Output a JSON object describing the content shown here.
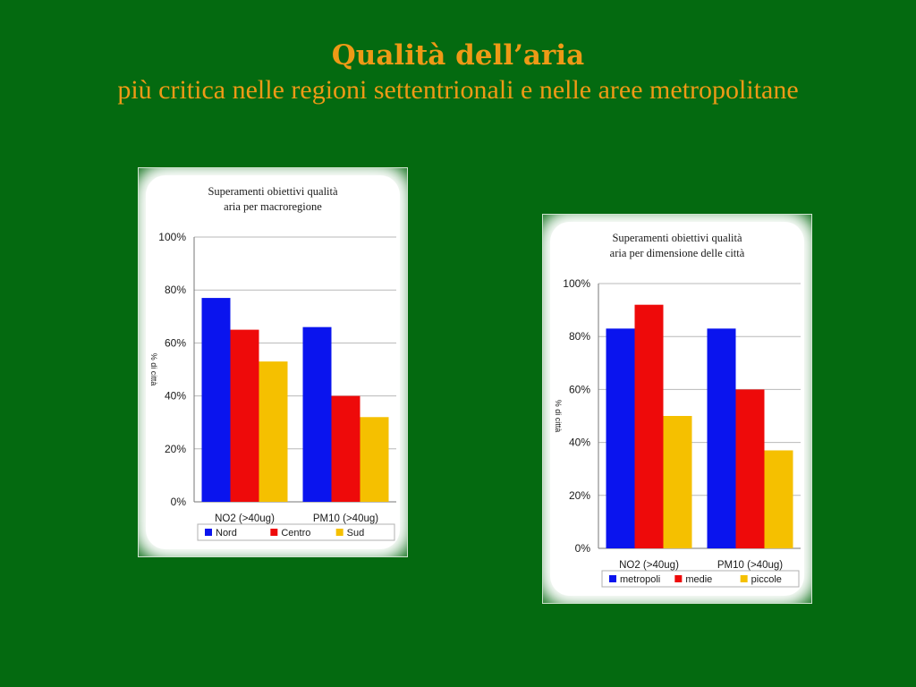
{
  "slide": {
    "title": "Qualità dell’aria",
    "subtitle": "più critica nelle regioni settentrionali e nelle aree metropolitane"
  },
  "colors": {
    "background": "#046a10",
    "title": "#ee9a16",
    "series": [
      "#0a14ee",
      "#ee0a0a",
      "#f5c000"
    ]
  },
  "chart_data": [
    {
      "type": "bar",
      "title_lines": [
        "Superamenti obiettivi qualità",
        "aria per macroregione"
      ],
      "ylabel": "% di città",
      "categories": [
        "NO2 (>40ug)",
        "PM10 (>40ug)"
      ],
      "series": [
        {
          "name": "Nord",
          "values": [
            77,
            66
          ]
        },
        {
          "name": "Centro",
          "values": [
            65,
            40
          ]
        },
        {
          "name": "Sud",
          "values": [
            53,
            32
          ]
        }
      ],
      "ylim": [
        0,
        100
      ],
      "yticks": [
        0,
        20,
        40,
        60,
        80,
        100
      ],
      "ytick_labels": [
        "0%",
        "20%",
        "40%",
        "60%",
        "80%",
        "100%"
      ],
      "grid": true,
      "legend": "bottom"
    },
    {
      "type": "bar",
      "title_lines": [
        "Superamenti obiettivi qualità",
        "aria per dimensione delle città"
      ],
      "ylabel": "% di città",
      "categories": [
        "NO2 (>40ug)",
        "PM10 (>40ug)"
      ],
      "series": [
        {
          "name": "metropoli",
          "values": [
            83,
            83
          ]
        },
        {
          "name": "medie",
          "values": [
            92,
            60
          ]
        },
        {
          "name": "piccole",
          "values": [
            50,
            37
          ]
        }
      ],
      "ylim": [
        0,
        100
      ],
      "yticks": [
        0,
        20,
        40,
        60,
        80,
        100
      ],
      "ytick_labels": [
        "0%",
        "20%",
        "40%",
        "60%",
        "80%",
        "100%"
      ],
      "grid": true,
      "legend": "bottom"
    }
  ]
}
